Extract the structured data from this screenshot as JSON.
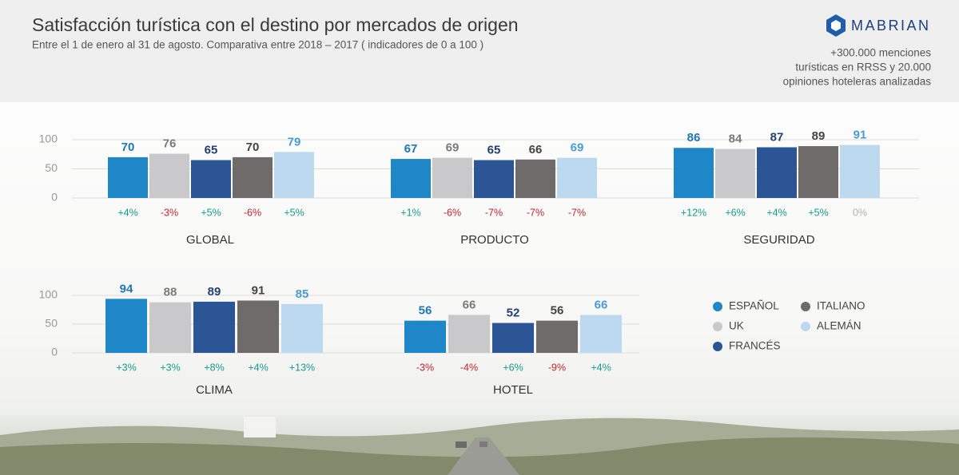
{
  "header": {
    "title": "Satisfacción turística con el destino por mercados de origen",
    "subtitle": "Entre el 1 de enero al 31 de agosto. Comparativa entre  2018 – 2017 ( indicadores de 0 a 100 )"
  },
  "brand": {
    "name": "MABRIAN",
    "note": [
      "+300.000 menciones",
      "turísticas en RRSS y 20.000",
      "opiniones hoteleras analizadas"
    ]
  },
  "legend": {
    "items": [
      {
        "name": "ESPAÑOL",
        "color": "#1f86c8",
        "label_color": "#1f78b4"
      },
      {
        "name": "UK",
        "color": "#c9c9cb",
        "label_color": "#7a7a7a"
      },
      {
        "name": "FRANCÉS",
        "color": "#2b5595",
        "label_color": "#23406e"
      },
      {
        "name": "ITALIANO",
        "color": "#6f6b6b",
        "label_color": "#444444"
      },
      {
        "name": "ALEMÁN",
        "color": "#bdd9f0",
        "label_color": "#4c9bd4"
      }
    ],
    "positive_color": "#1a9a8c",
    "negative_color": "#c0272d",
    "zero_color": "#b0b0b0"
  },
  "chart_data": [
    {
      "type": "bar",
      "title": "GLOBAL",
      "values": [
        70,
        76,
        65,
        70,
        79
      ],
      "changes": [
        4,
        -3,
        5,
        -6,
        5
      ],
      "change_labels": [
        "+4%",
        "-3%",
        "+5%",
        "-6%",
        "+5%"
      ],
      "ylim": [
        0,
        100
      ],
      "yticks": [
        0,
        50,
        100
      ],
      "grid": true
    },
    {
      "type": "bar",
      "title": "PRODUCTO",
      "values": [
        67,
        69,
        65,
        66,
        69
      ],
      "changes": [
        1,
        -6,
        -7,
        -7,
        -7
      ],
      "change_labels": [
        "+1%",
        "-6%",
        "-7%",
        "-7%",
        "-7%"
      ],
      "ylim": [
        0,
        100
      ]
    },
    {
      "type": "bar",
      "title": "SEGURIDAD",
      "values": [
        86,
        84,
        87,
        89,
        91
      ],
      "changes": [
        12,
        6,
        4,
        5,
        0
      ],
      "change_labels": [
        "+12%",
        "+6%",
        "+4%",
        "+5%",
        "0%"
      ],
      "ylim": [
        0,
        100
      ]
    },
    {
      "type": "bar",
      "title": "CLIMA",
      "values": [
        94,
        88,
        89,
        91,
        85
      ],
      "changes": [
        3,
        3,
        8,
        4,
        13
      ],
      "change_labels": [
        "+3%",
        "+3%",
        "+8%",
        "+4%",
        "+13%"
      ],
      "ylim": [
        0,
        100
      ],
      "yticks": [
        0,
        50,
        100
      ],
      "grid": true
    },
    {
      "type": "bar",
      "title": "HOTEL",
      "values": [
        56,
        66,
        52,
        56,
        66
      ],
      "changes": [
        -3,
        -4,
        6,
        -9,
        4
      ],
      "change_labels": [
        "-3%",
        "-4%",
        "+6%",
        "-9%",
        "+4%"
      ],
      "ylim": [
        0,
        100
      ]
    }
  ]
}
